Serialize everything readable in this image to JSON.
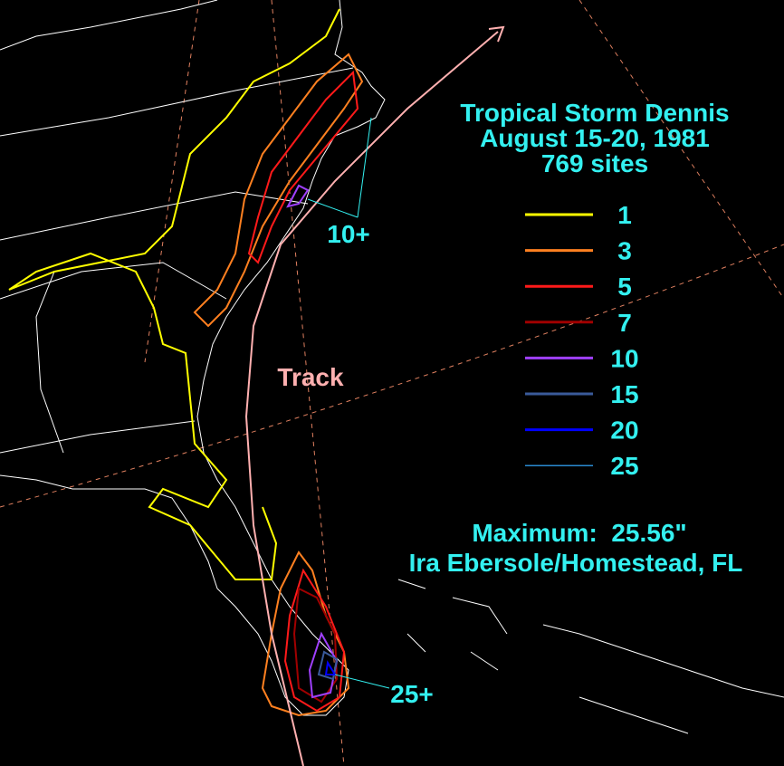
{
  "title_lines": [
    "Tropical Storm Dennis",
    "August 15-20, 1981",
    "769 sites"
  ],
  "legend": [
    {
      "value": 1,
      "color": "#ffff00"
    },
    {
      "value": 3,
      "color": "#ff8020"
    },
    {
      "value": 5,
      "color": "#ff1a1a"
    },
    {
      "value": 7,
      "color": "#a00000"
    },
    {
      "value": 10,
      "color": "#a040ff"
    },
    {
      "value": 15,
      "color": "#3a5a9a"
    },
    {
      "value": 20,
      "color": "#0000ff"
    },
    {
      "value": 25,
      "color": "#2a8ad0"
    }
  ],
  "annotations": {
    "track": "Track",
    "north_max": "10+",
    "south_max": "25+"
  },
  "maximum": "Maximum:  25.56\"",
  "location": "Ira Ebersole/Homestead, FL"
}
